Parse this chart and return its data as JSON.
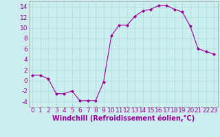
{
  "x": [
    0,
    1,
    2,
    3,
    4,
    5,
    6,
    7,
    8,
    9,
    10,
    11,
    12,
    13,
    14,
    15,
    16,
    17,
    18,
    19,
    20,
    21,
    22,
    23
  ],
  "y": [
    1,
    1,
    0.3,
    -2.5,
    -2.5,
    -2,
    -3.8,
    -3.8,
    -3.8,
    -0.3,
    8.5,
    10.5,
    10.5,
    12.2,
    13.2,
    13.5,
    14.2,
    14.2,
    13.5,
    13,
    10.3,
    6,
    5.5,
    5
  ],
  "line_color": "#990099",
  "marker": "D",
  "marker_size": 2,
  "bg_color": "#cceeee",
  "grid_color": "#aadddd",
  "xlabel": "Windchill (Refroidissement éolien,°C)",
  "xlabel_color": "#990099",
  "xlabel_fontsize": 7,
  "tick_color": "#990099",
  "tick_fontsize": 6.5,
  "ylim": [
    -5,
    15
  ],
  "xlim": [
    -0.5,
    23.5
  ],
  "yticks": [
    -4,
    -2,
    0,
    2,
    4,
    6,
    8,
    10,
    12,
    14
  ],
  "xticks": [
    0,
    1,
    2,
    3,
    4,
    5,
    6,
    7,
    8,
    9,
    10,
    11,
    12,
    13,
    14,
    15,
    16,
    17,
    18,
    19,
    20,
    21,
    22,
    23
  ]
}
